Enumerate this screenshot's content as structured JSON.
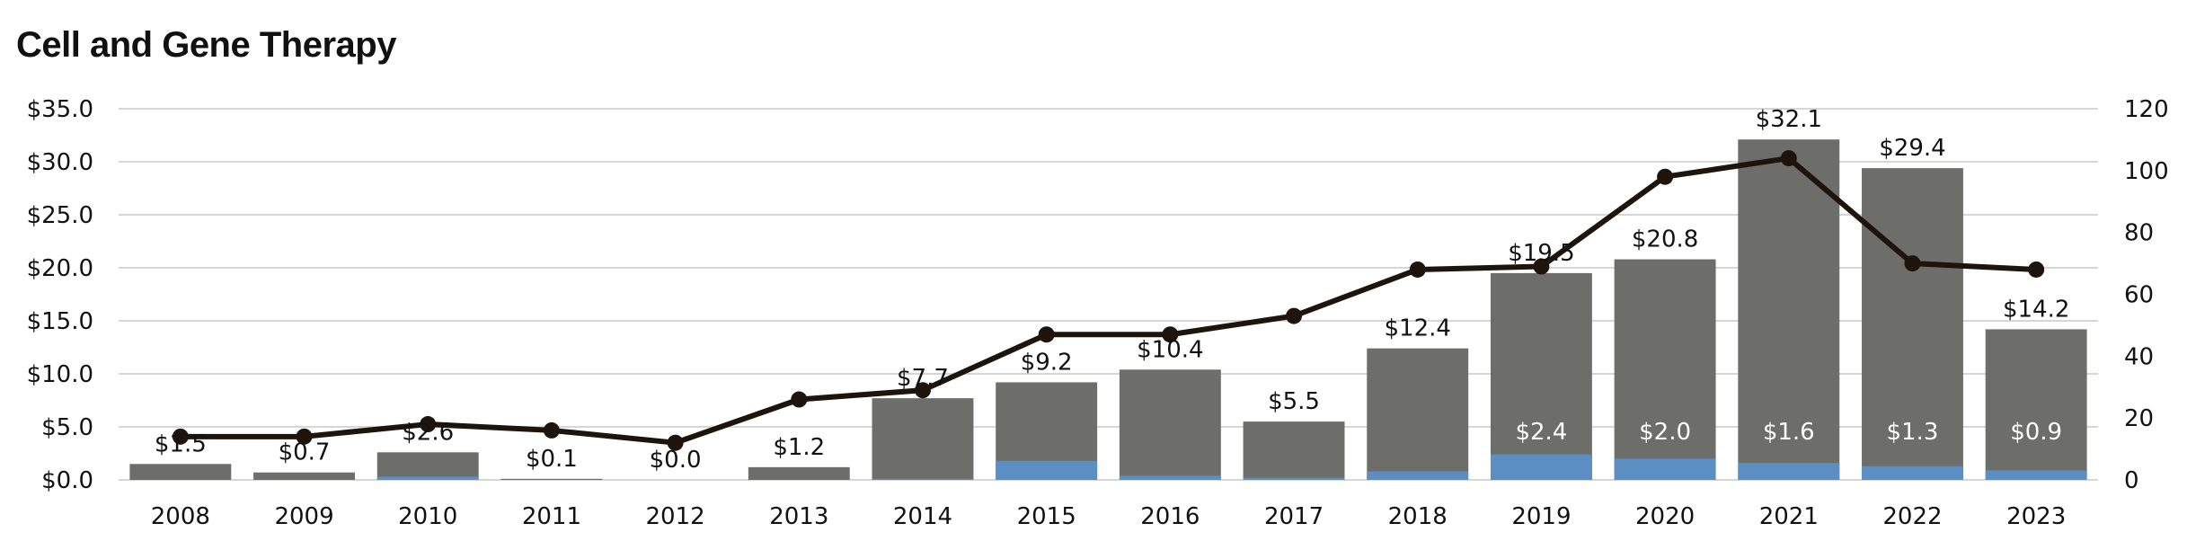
{
  "title": "Cell and Gene Therapy",
  "chart_data": {
    "type": "bar",
    "title": "Cell and Gene Therapy",
    "categories": [
      "2008",
      "2009",
      "2010",
      "2011",
      "2012",
      "2013",
      "2014",
      "2015",
      "2016",
      "2017",
      "2018",
      "2019",
      "2020",
      "2021",
      "2022",
      "2023"
    ],
    "bar_labels": [
      "$1.5",
      "$0.7",
      "$2.6",
      "$0.1",
      "$0.0",
      "$1.2",
      "$7.7",
      "$9.2",
      "$10.4",
      "$5.5",
      "$12.4",
      "$19.5",
      "$20.8",
      "$32.1",
      "$29.4",
      "$14.2"
    ],
    "series": [
      {
        "name": "",
        "kind": "bar",
        "axis": "left",
        "color": "#6d6d6a",
        "values": [
          1.5,
          0.7,
          2.6,
          0.1,
          0.0,
          1.2,
          7.7,
          9.2,
          10.4,
          5.5,
          12.4,
          19.5,
          20.8,
          32.1,
          29.4,
          14.2
        ]
      },
      {
        "name": "",
        "kind": "bar-inner",
        "axis": "left",
        "color": "#5b8fc4",
        "values": [
          0.0,
          0.0,
          0.3,
          0.0,
          0.0,
          0.0,
          0.1,
          1.8,
          0.4,
          0.2,
          0.8,
          2.4,
          2.0,
          1.6,
          1.3,
          0.9
        ],
        "labels": [
          "",
          "",
          "",
          "",
          "",
          "",
          "",
          "",
          "",
          "",
          "",
          "$2.4",
          "$2.0",
          "$1.6",
          "$1.3",
          "$0.9"
        ]
      },
      {
        "name": "",
        "kind": "line",
        "axis": "right",
        "color": "#1f140c",
        "values": [
          14,
          14,
          18,
          16,
          12,
          26,
          29,
          47,
          47,
          53,
          68,
          69,
          98,
          104,
          70,
          68
        ]
      }
    ],
    "y_left": {
      "ticks": [
        "$0.0",
        "$5.0",
        "$10.0",
        "$15.0",
        "$20.0",
        "$25.0",
        "$30.0",
        "$35.0"
      ],
      "lim": [
        0,
        35
      ]
    },
    "y_right": {
      "ticks": [
        "0",
        "20",
        "40",
        "60",
        "80",
        "100",
        "120"
      ],
      "lim": [
        0,
        120
      ]
    },
    "xlabel": "",
    "ylabel": "",
    "grid": true,
    "legend": "none"
  }
}
